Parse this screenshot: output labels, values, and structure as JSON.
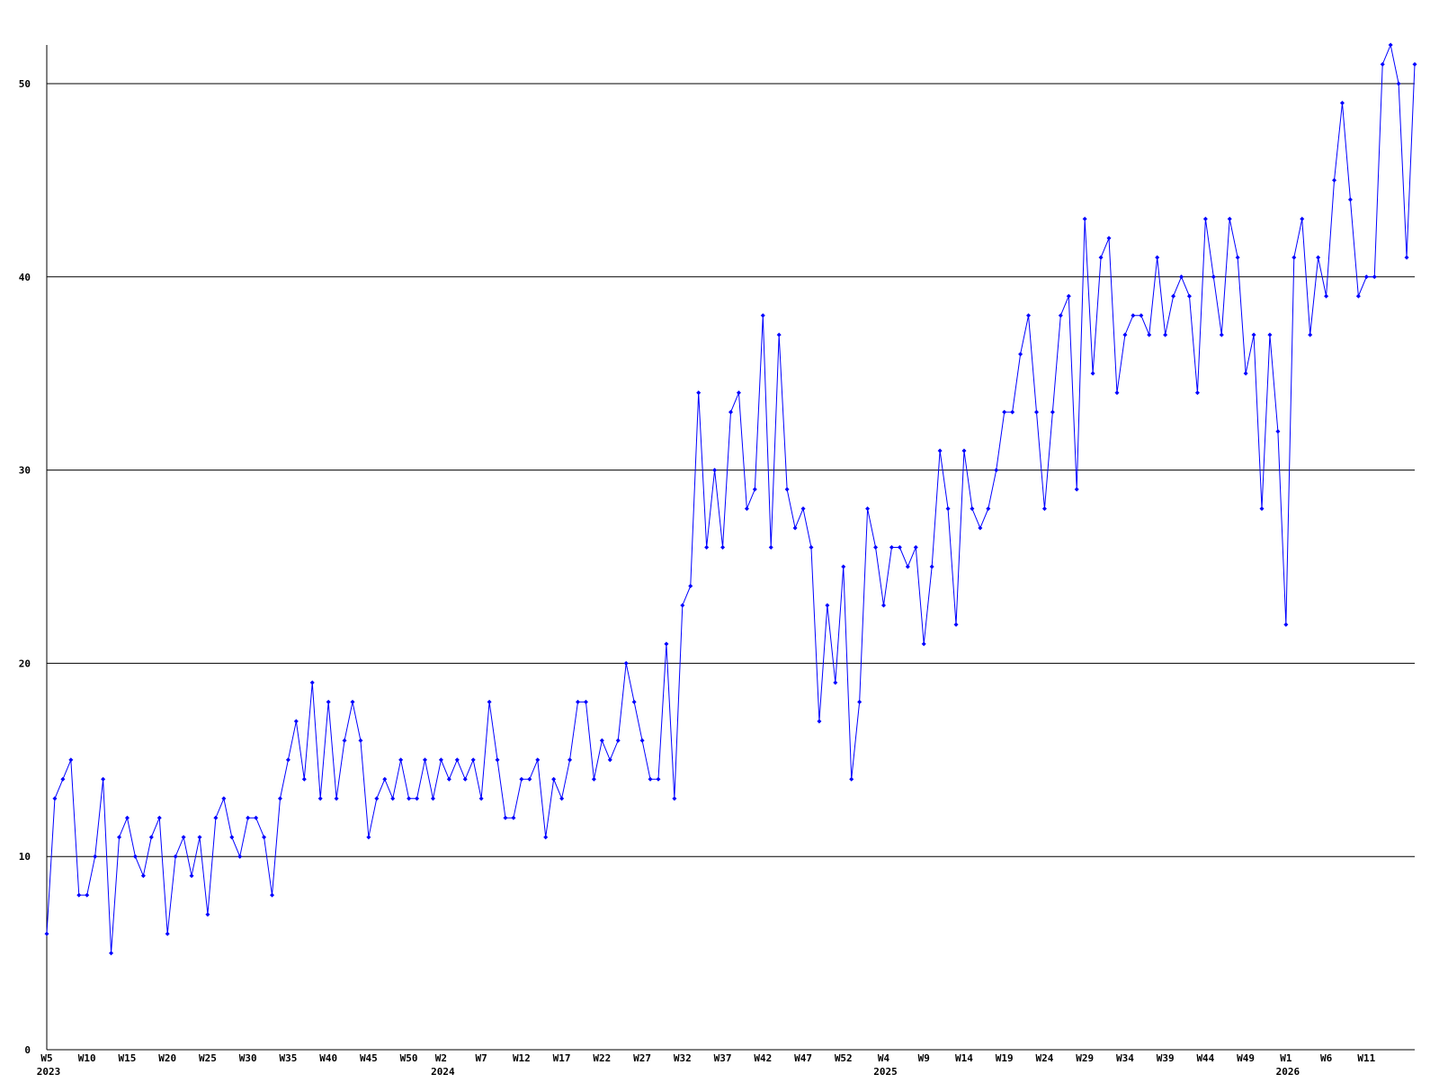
{
  "chart_data": {
    "type": "line",
    "categories": [
      "W5",
      null,
      null,
      null,
      null,
      "W10",
      null,
      null,
      null,
      null,
      "W15",
      null,
      null,
      null,
      null,
      "W20",
      null,
      null,
      null,
      null,
      "W25",
      null,
      null,
      null,
      null,
      "W30",
      null,
      null,
      null,
      null,
      "W35",
      null,
      null,
      null,
      null,
      "W40",
      null,
      null,
      null,
      null,
      "W45",
      null,
      null,
      null,
      null,
      "W50",
      null,
      null,
      null,
      "W2",
      null,
      null,
      null,
      null,
      "W7",
      null,
      null,
      null,
      null,
      "W12",
      null,
      null,
      null,
      null,
      "W17",
      null,
      null,
      null,
      null,
      "W22",
      null,
      null,
      null,
      null,
      "W27",
      null,
      null,
      null,
      null,
      "W32",
      null,
      null,
      null,
      null,
      "W37",
      null,
      null,
      null,
      null,
      "W42",
      null,
      null,
      null,
      null,
      "W47",
      null,
      null,
      null,
      null,
      "W52",
      null,
      null,
      null,
      null,
      "W4",
      null,
      null,
      null,
      null,
      "W9",
      null,
      null,
      null,
      null,
      "W14",
      null,
      null,
      null,
      null,
      "W19",
      null,
      null,
      null,
      null,
      "W24",
      null,
      null,
      null,
      null,
      "W29",
      null,
      null,
      null,
      null,
      "W34",
      null,
      null,
      null,
      null,
      "W39",
      null,
      null,
      null,
      null,
      "W44",
      null,
      null,
      null,
      null,
      "W49",
      null,
      null,
      null,
      null,
      "W1",
      null,
      null,
      null,
      null,
      "W6",
      null,
      null,
      null,
      null,
      "W11",
      null,
      null,
      null,
      null,
      null,
      null
    ],
    "category_years": [
      "2023",
      null,
      null,
      null,
      null,
      null,
      null,
      null,
      null,
      null,
      null,
      null,
      null,
      null,
      null,
      null,
      null,
      null,
      null,
      null,
      null,
      null,
      null,
      null,
      null,
      null,
      null,
      null,
      null,
      null,
      null,
      null,
      null,
      null,
      null,
      null,
      null,
      null,
      null,
      null,
      null,
      null,
      null,
      null,
      null,
      null,
      null,
      null,
      null,
      "2024",
      null,
      null,
      null,
      null,
      null,
      null,
      null,
      null,
      null,
      null,
      null,
      null,
      null,
      null,
      null,
      null,
      null,
      null,
      null,
      null,
      null,
      null,
      null,
      null,
      null,
      null,
      null,
      null,
      null,
      null,
      null,
      null,
      null,
      null,
      null,
      null,
      null,
      null,
      null,
      null,
      null,
      null,
      null,
      null,
      null,
      null,
      null,
      null,
      null,
      null,
      null,
      null,
      null,
      null,
      "2025",
      null,
      null,
      null,
      null,
      null,
      null,
      null,
      null,
      null,
      null,
      null,
      null,
      null,
      null,
      null,
      null,
      null,
      null,
      null,
      null,
      null,
      null,
      null,
      null,
      null,
      null,
      null,
      null,
      null,
      null,
      null,
      null,
      null,
      null,
      null,
      null,
      null,
      null,
      null,
      null,
      null,
      null,
      null,
      null,
      null,
      null,
      null,
      null,
      null,
      "2026",
      null,
      null,
      null,
      null,
      null,
      null,
      null,
      null,
      null,
      null,
      null,
      null,
      null,
      null,
      null,
      null
    ],
    "values": [
      6,
      13,
      14,
      15,
      8,
      8,
      10,
      14,
      5,
      11,
      12,
      10,
      9,
      11,
      12,
      6,
      10,
      11,
      9,
      11,
      7,
      12,
      13,
      11,
      10,
      12,
      12,
      11,
      8,
      13,
      15,
      17,
      14,
      19,
      13,
      18,
      13,
      16,
      18,
      16,
      11,
      13,
      14,
      13,
      15,
      13,
      13,
      15,
      13,
      15,
      14,
      15,
      14,
      15,
      13,
      18,
      15,
      12,
      12,
      14,
      14,
      15,
      11,
      14,
      13,
      15,
      18,
      18,
      14,
      16,
      15,
      16,
      20,
      18,
      16,
      14,
      14,
      21,
      13,
      23,
      24,
      34,
      26,
      30,
      26,
      33,
      34,
      28,
      29,
      38,
      26,
      37,
      29,
      27,
      28,
      26,
      17,
      23,
      19,
      25,
      14,
      18,
      28,
      26,
      23,
      26,
      26,
      25,
      26,
      21,
      25,
      31,
      28,
      22,
      31,
      28,
      27,
      28,
      30,
      33,
      33,
      36,
      38,
      33,
      28,
      33,
      38,
      39,
      29,
      43,
      35,
      41,
      42,
      34,
      37,
      38,
      38,
      37,
      41,
      37,
      39,
      40,
      39,
      34,
      43,
      40,
      37,
      43,
      41,
      35,
      37,
      28,
      37,
      32,
      22,
      41,
      43,
      37,
      41,
      39,
      45,
      49,
      44,
      39,
      40,
      40,
      51,
      52,
      50,
      41,
      51
    ],
    "color": "#0000ff",
    "ylim": [
      0,
      52
    ],
    "yticks": [
      0,
      10,
      20,
      30,
      40,
      50
    ],
    "grid": true
  }
}
